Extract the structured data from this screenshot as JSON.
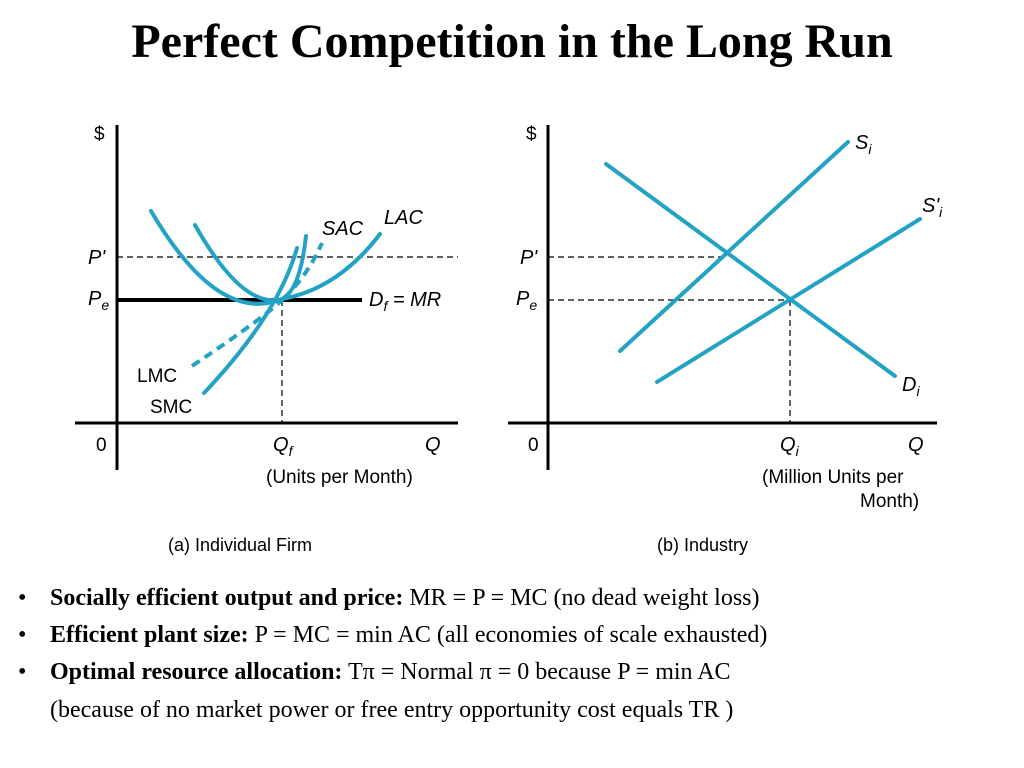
{
  "title": "Perfect Competition in the Long Run",
  "colors": {
    "curve": "#23a3c4",
    "axis": "#000000"
  },
  "firm": {
    "y_axis": "$",
    "p_prime": "P'",
    "pe_main": "P",
    "pe_sub": "e",
    "origin": "0",
    "qf_main": "Q",
    "qf_sub": "f",
    "x_axis": "Q",
    "x_units": "(Units per Month)",
    "sac": "SAC",
    "lac": "LAC",
    "lmc": "LMC",
    "smc": "SMC",
    "df_main": "D",
    "df_sub": "f",
    "df_rest": " = MR",
    "caption": "(a) Individual Firm"
  },
  "industry": {
    "y_axis": "$",
    "p_prime": "P'",
    "pe_main": "P",
    "pe_sub": "e",
    "origin": "0",
    "qi_main": "Q",
    "qi_sub": "i",
    "x_axis": "Q",
    "x_units_1": "(Million Units per",
    "x_units_2": "Month)",
    "s_main": "S",
    "s_sub": "i",
    "s2_main": "S'",
    "s2_sub": "i",
    "d_main": "D",
    "d_sub": "i",
    "caption": "(b) Industry"
  },
  "bullets": [
    {
      "bold": "Socially efficient output and price:",
      "text": " MR = P = MC (no dead weight loss)"
    },
    {
      "bold": "Efficient plant size:",
      "text": " P = MC = min AC (all economies of scale exhausted)"
    },
    {
      "bold": "Optimal resource allocation:",
      "text": " Tπ = Normal π = 0 because P = min AC"
    },
    {
      "bold": "",
      "text": "(because of no market power or free entry opportunity cost equals TR )"
    }
  ],
  "bullet_char": "•"
}
